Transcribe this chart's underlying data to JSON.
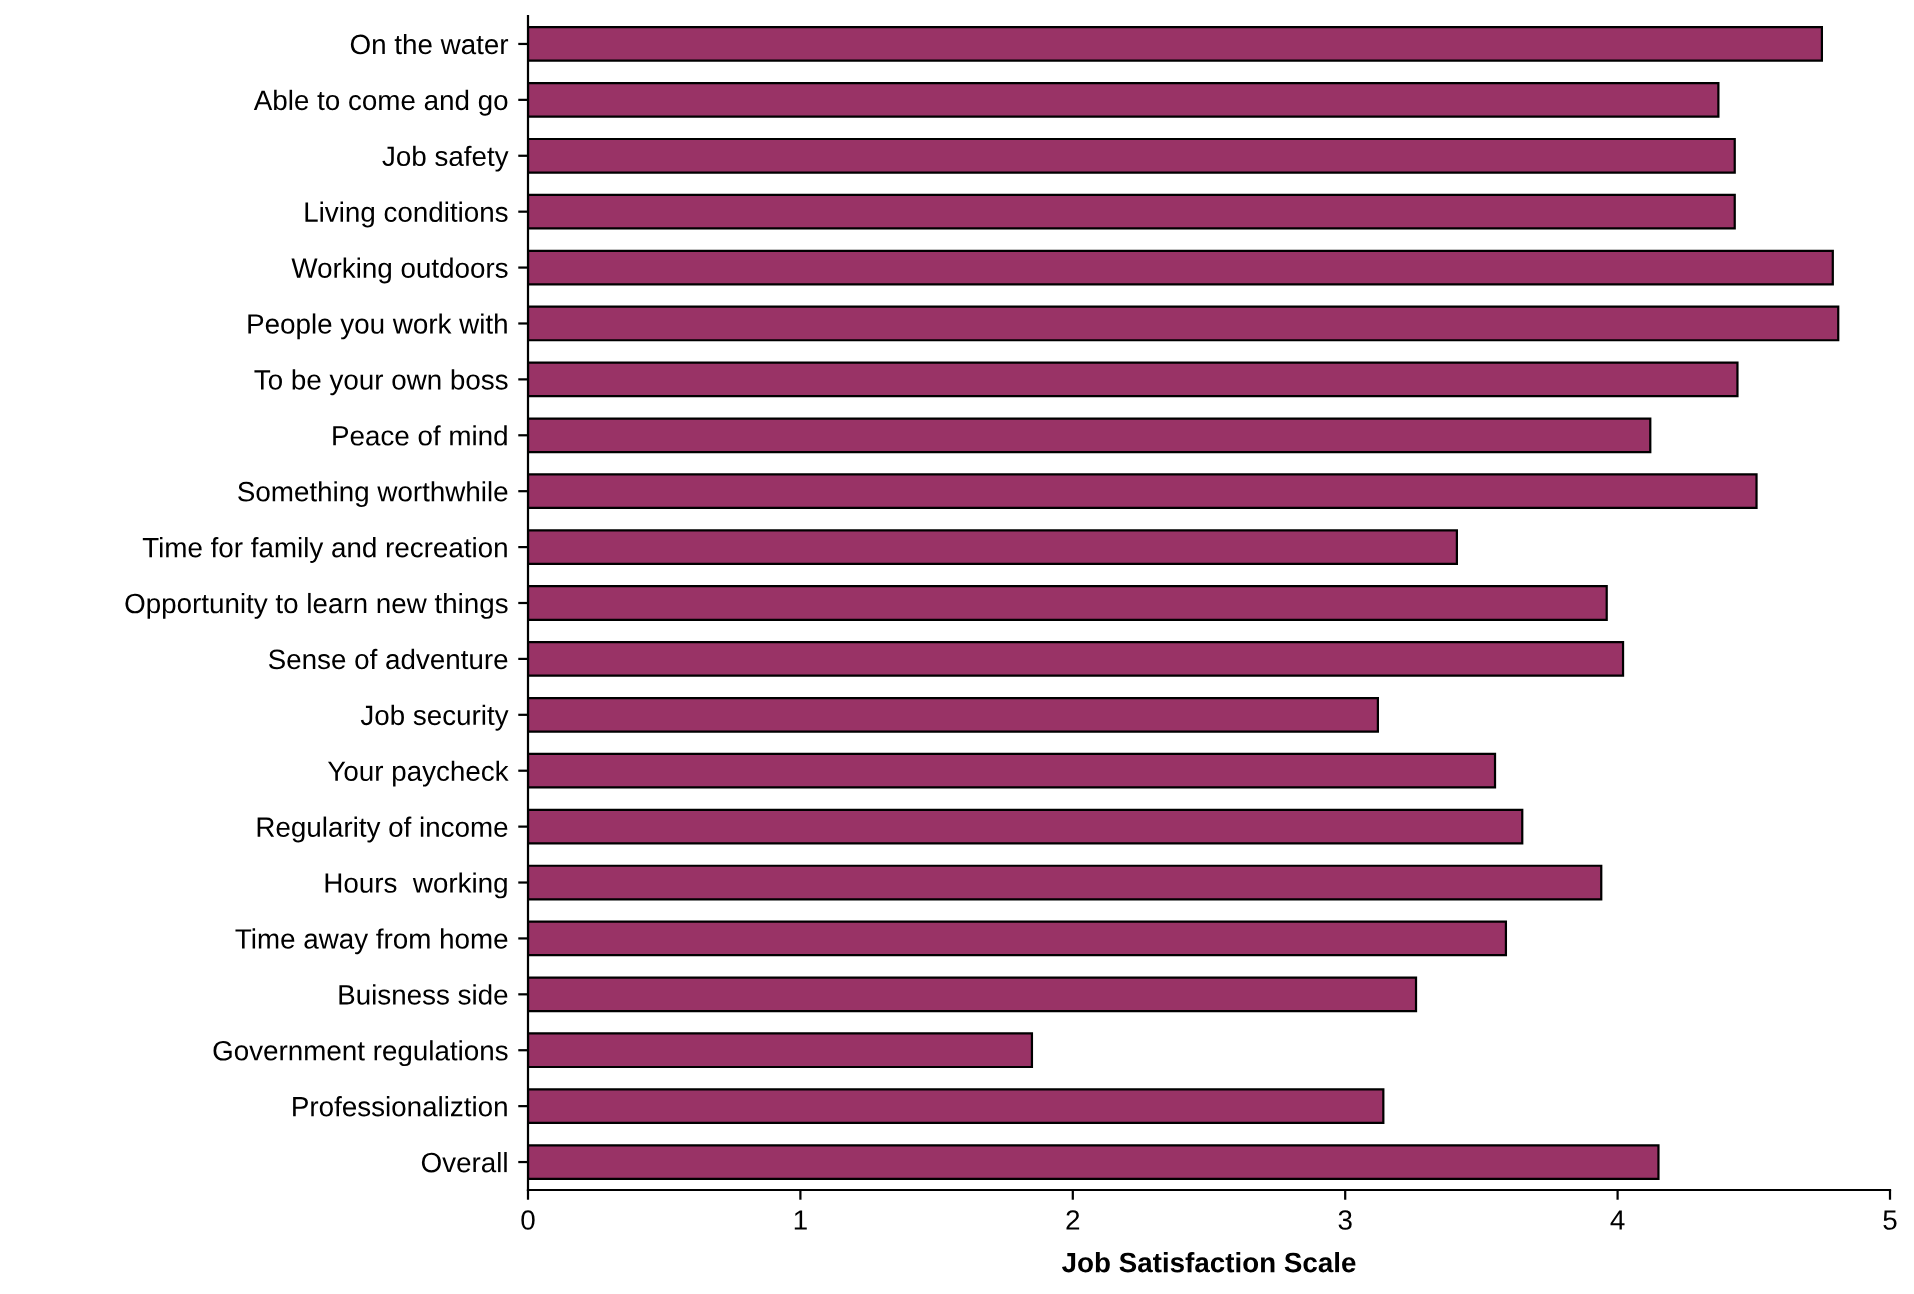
{
  "chart_data": {
    "type": "bar",
    "orientation": "horizontal",
    "xlabel": "Job Satisfaction Scale",
    "categories": [
      "On the water",
      "Able to come and go",
      "Job safety",
      "Living conditions",
      "Working outdoors",
      "People you work with",
      "To be your own boss",
      "Peace of mind",
      "Something worthwhile",
      "Time for family and recreation",
      "Opportunity to learn new things",
      "Sense of adventure",
      "Job security",
      "Your paycheck",
      "Regularity of income",
      "Hours  working",
      "Time away from home",
      "Buisness side",
      "Government regulations",
      "Professionaliztion",
      "Overall"
    ],
    "values": [
      4.75,
      4.37,
      4.43,
      4.43,
      4.79,
      4.81,
      4.44,
      4.12,
      4.51,
      3.41,
      3.96,
      4.02,
      3.12,
      3.55,
      3.65,
      3.94,
      3.59,
      3.26,
      1.85,
      3.14,
      4.15
    ],
    "color": "#993366",
    "xlim": [
      0,
      5
    ],
    "xticks": [
      0,
      1,
      2,
      3,
      4,
      5
    ],
    "grid": false
  }
}
